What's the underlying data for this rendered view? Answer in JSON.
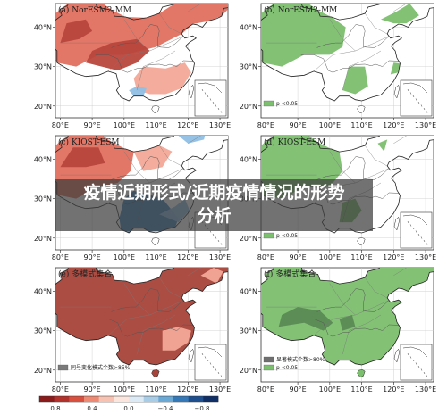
{
  "banner": {
    "line1": "疫情近期形式/近期疫情情况的形势",
    "line2": "分析"
  },
  "panels": [
    {
      "label": "(a) NorESM2-MM",
      "type": "value"
    },
    {
      "label": "(b) NorESM2-MM",
      "type": "sig",
      "legend": [
        "p <0.05"
      ]
    },
    {
      "label": "(c) KIOST-ESM",
      "type": "value"
    },
    {
      "label": "(d) KIOST-ESM",
      "type": "sig",
      "legend": [
        "p <0.05"
      ]
    },
    {
      "label": "(e) 多模式集合",
      "type": "value",
      "legend": [
        "同号变化模式个数>85%"
      ]
    },
    {
      "label": "(f) 多模式集合",
      "type": "sig",
      "legend": [
        "显著模式个数>80%",
        "p <0.05"
      ]
    }
  ],
  "axes": {
    "x_ticks": [
      "80°E",
      "90°E",
      "100°E",
      "110°E",
      "120°E",
      "130°E"
    ],
    "y_ticks": [
      "40°N",
      "30°N",
      "20°N"
    ]
  },
  "colorbar": {
    "ticks": [
      "0.8",
      "0.4",
      "0.0",
      "−0.4",
      "−0.8"
    ],
    "colors": [
      "#8b1a1a",
      "#b3312b",
      "#d9503f",
      "#ee8a73",
      "#f7c2b2",
      "#fbe5dc",
      "#dceaf5",
      "#a9cce6",
      "#6aa8d5",
      "#3478b7",
      "#1f4f8f",
      "#0f2f66"
    ]
  },
  "palette": {
    "warm_dark": "#b8463c",
    "warm_mid": "#e2705f",
    "warm_light": "#f3a898",
    "cool": "#3f7fb8",
    "cool_light": "#8fbfe4",
    "sig_green": "#7cbf6e",
    "sig_dark": "#5b8a54",
    "ensemble_red": "#a8433a"
  }
}
